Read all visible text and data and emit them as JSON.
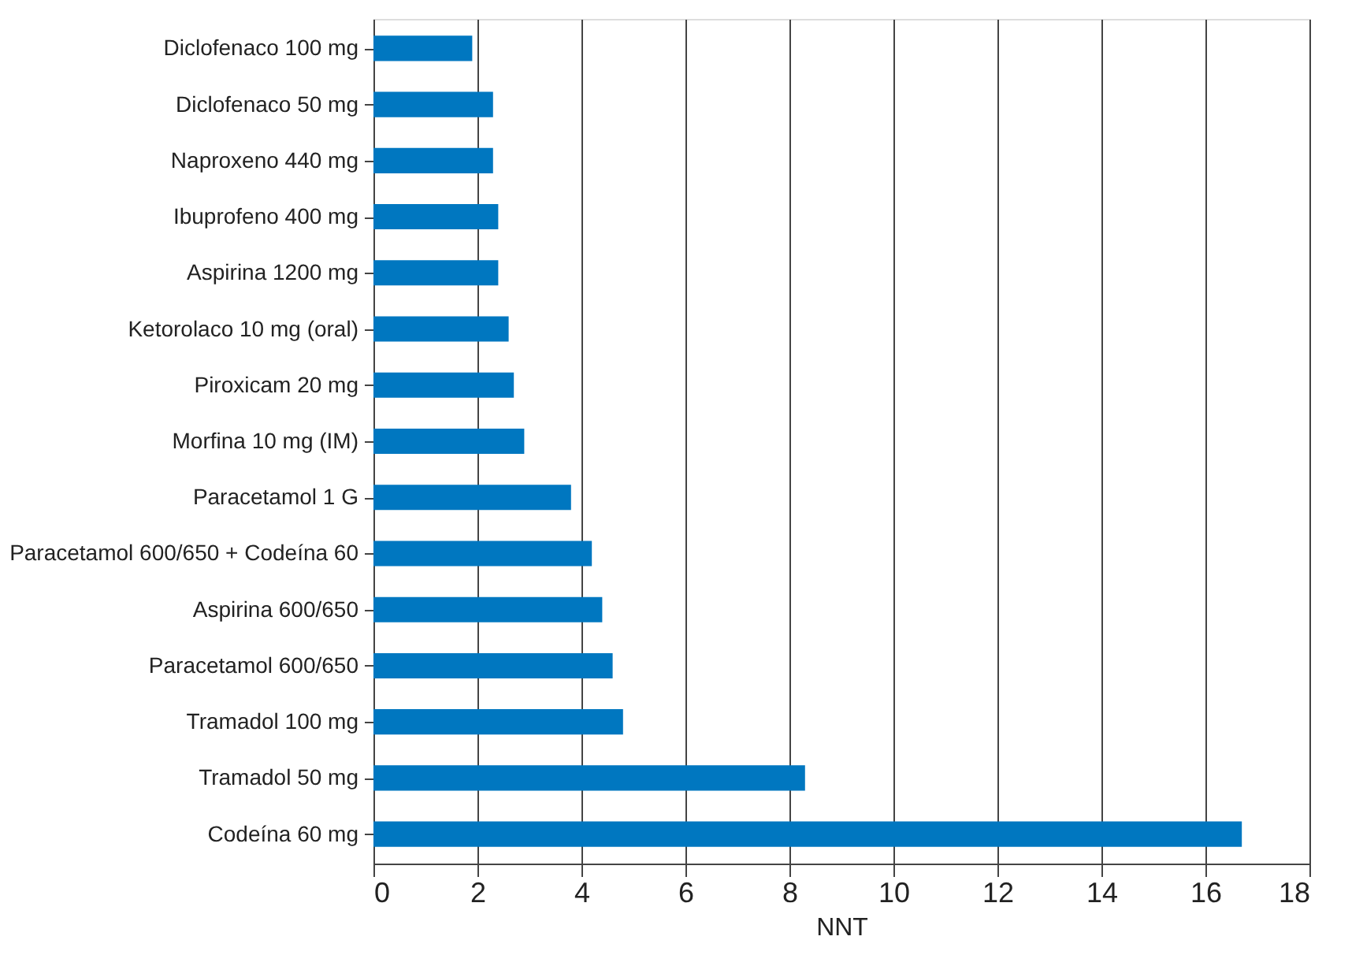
{
  "chart_data": {
    "type": "bar",
    "orientation": "horizontal",
    "xlabel": "NNT",
    "categories": [
      "Diclofenaco 100 mg",
      "Diclofenaco 50 mg",
      "Naproxeno 440 mg",
      "Ibuprofeno 400 mg",
      "Aspirina 1200 mg",
      "Ketorolaco 10 mg (oral)",
      "Piroxicam 20 mg",
      "Morfina 10 mg (IM)",
      "Paracetamol 1 G",
      "Paracetamol 600/650 + Codeína 60",
      "Aspirina 600/650",
      "Paracetamol 600/650",
      "Tramadol 100 mg",
      "Tramadol 50 mg",
      "Codeína 60 mg"
    ],
    "values": [
      1.9,
      2.3,
      2.3,
      2.4,
      2.4,
      2.6,
      2.7,
      2.9,
      3.8,
      4.2,
      4.4,
      4.6,
      4.8,
      8.3,
      16.7
    ],
    "color": "#0077c0",
    "xlim": [
      0,
      18
    ],
    "xticks": [
      0,
      2,
      4,
      6,
      8,
      10,
      12,
      14,
      16,
      18
    ],
    "grid": "x"
  }
}
